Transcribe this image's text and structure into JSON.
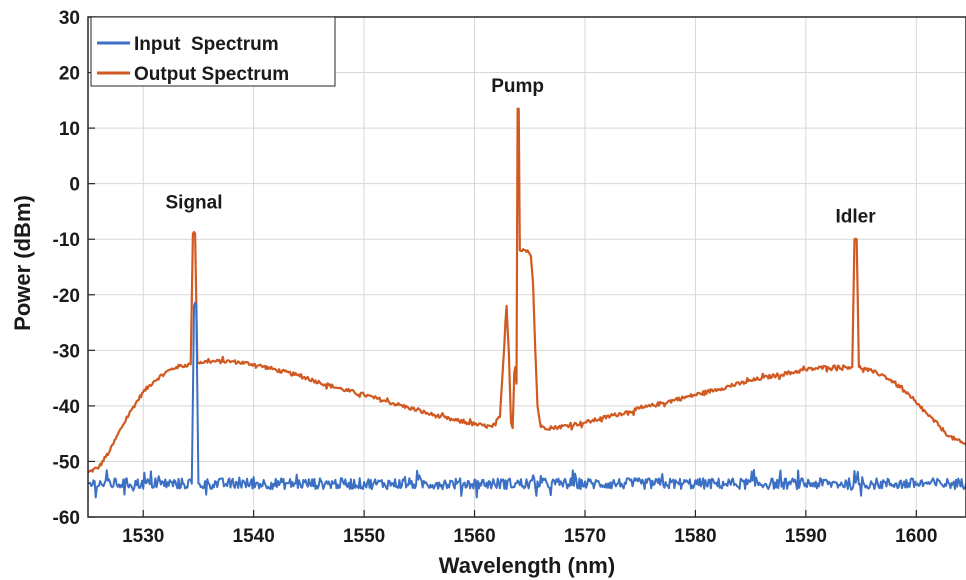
{
  "chart_data": {
    "type": "line",
    "title": "",
    "xlabel": "Wavelength (nm)",
    "ylabel": "Power (dBm)",
    "xlim": [
      1525,
      1604.5
    ],
    "ylim": [
      -60,
      30
    ],
    "xticks": [
      1530,
      1540,
      1550,
      1560,
      1570,
      1580,
      1590,
      1600
    ],
    "yticks": [
      -60,
      -50,
      -40,
      -30,
      -20,
      -10,
      0,
      10,
      20,
      30
    ],
    "grid": true,
    "legend_position": "top-left",
    "series": [
      {
        "name": "Input  Spectrum",
        "color": "#3b70c4",
        "points": [
          [
            1525,
            -54
          ],
          [
            1534.4,
            -54
          ],
          [
            1534.6,
            -22
          ],
          [
            1534.8,
            -22
          ],
          [
            1535.0,
            -54
          ],
          [
            1604.5,
            -54
          ]
        ],
        "noise_db": 1.0
      },
      {
        "name": "Output Spectrum",
        "color": "#d05a22",
        "points": [
          [
            1525,
            -52
          ],
          [
            1526,
            -51
          ],
          [
            1527,
            -48
          ],
          [
            1528,
            -44
          ],
          [
            1529,
            -40.5
          ],
          [
            1530,
            -37.5
          ],
          [
            1531,
            -35.5
          ],
          [
            1532,
            -34
          ],
          [
            1533,
            -33
          ],
          [
            1534.3,
            -32.5
          ],
          [
            1534.5,
            -9
          ],
          [
            1534.7,
            -9
          ],
          [
            1534.9,
            -32.2
          ],
          [
            1536,
            -32
          ],
          [
            1538,
            -32
          ],
          [
            1540,
            -32.5
          ],
          [
            1542,
            -33.5
          ],
          [
            1544,
            -34.5
          ],
          [
            1546,
            -35.8
          ],
          [
            1548,
            -37
          ],
          [
            1550,
            -38
          ],
          [
            1552,
            -39.2
          ],
          [
            1554,
            -40.3
          ],
          [
            1556,
            -41.5
          ],
          [
            1558,
            -42.5
          ],
          [
            1560,
            -43.3
          ],
          [
            1561.6,
            -43.8
          ],
          [
            1562.3,
            -42
          ],
          [
            1562.7,
            -29
          ],
          [
            1562.9,
            -22
          ],
          [
            1563.1,
            -30
          ],
          [
            1563.3,
            -43
          ],
          [
            1563.45,
            -44
          ],
          [
            1563.6,
            -34
          ],
          [
            1563.7,
            -33
          ],
          [
            1563.8,
            -36
          ],
          [
            1563.9,
            13.5
          ],
          [
            1564.0,
            13.5
          ],
          [
            1564.1,
            -12
          ],
          [
            1564.4,
            -11.8
          ],
          [
            1564.8,
            -12
          ],
          [
            1565.1,
            -13
          ],
          [
            1565.3,
            -18
          ],
          [
            1565.5,
            -30
          ],
          [
            1565.7,
            -40
          ],
          [
            1566,
            -43.8
          ],
          [
            1567,
            -44
          ],
          [
            1570,
            -43
          ],
          [
            1574,
            -41
          ],
          [
            1578,
            -39
          ],
          [
            1582,
            -37
          ],
          [
            1586,
            -35
          ],
          [
            1590,
            -33.5
          ],
          [
            1592,
            -33
          ],
          [
            1594.2,
            -33
          ],
          [
            1594.4,
            -10
          ],
          [
            1594.6,
            -10
          ],
          [
            1594.8,
            -33
          ],
          [
            1596,
            -33.8
          ],
          [
            1597,
            -34.5
          ],
          [
            1598,
            -35.8
          ],
          [
            1599,
            -37.5
          ],
          [
            1600,
            -39.5
          ],
          [
            1601,
            -41.5
          ],
          [
            1602,
            -43.5
          ],
          [
            1603,
            -45.5
          ],
          [
            1604,
            -46.5
          ],
          [
            1604.5,
            -47
          ]
        ],
        "noise_db": 0.35
      }
    ],
    "annotations": [
      {
        "text": "Signal",
        "x": 1534.6,
        "y": -4.5
      },
      {
        "text": "Pump",
        "x": 1563.9,
        "y": 16.5
      },
      {
        "text": "Idler",
        "x": 1594.5,
        "y": -7
      }
    ]
  }
}
